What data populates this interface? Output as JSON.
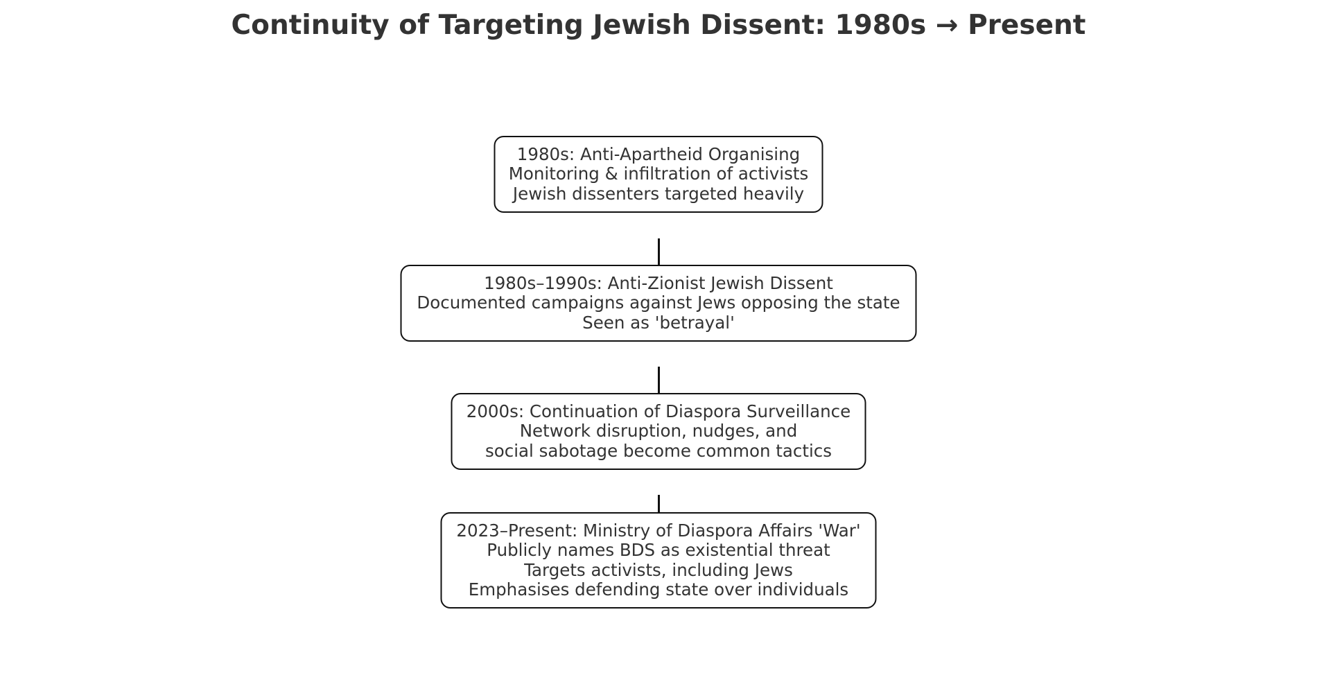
{
  "title": "Continuity of Targeting Jewish Dissent: 1980s → Present",
  "nodes": [
    {
      "lines": [
        "1980s: Anti-Apartheid Organising",
        "Monitoring & infiltration of activists",
        "Jewish dissenters targeted heavily"
      ]
    },
    {
      "lines": [
        "1980s–1990s: Anti-Zionist Jewish Dissent",
        "Documented campaigns against Jews opposing the state",
        "Seen as 'betrayal'"
      ]
    },
    {
      "lines": [
        "2000s: Continuation of Diaspora Surveillance",
        "Network disruption, nudges, and",
        "social sabotage become common tactics"
      ]
    },
    {
      "lines": [
        "2023–Present: Ministry of Diaspora Affairs 'War'",
        "Publicly names BDS as existential threat",
        "Targets activists, including Jews",
        "Emphasises defending state over individuals"
      ]
    }
  ],
  "colors": {
    "text": "#333333",
    "border": "#111111",
    "background": "#ffffff"
  }
}
